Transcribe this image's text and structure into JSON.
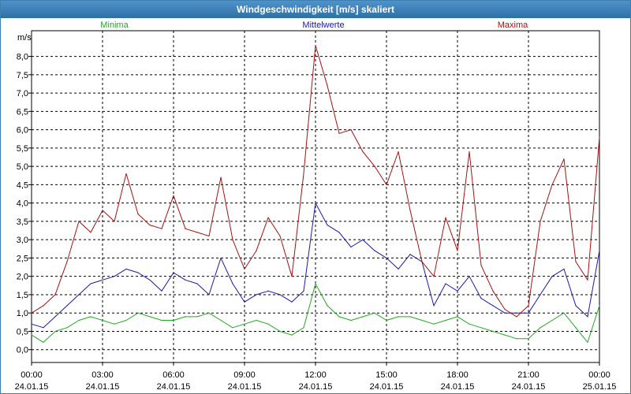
{
  "window": {
    "title": "Windgeschwindigkeit [m/s] skaliert"
  },
  "chart_data": {
    "type": "line",
    "title": "Windgeschwindigkeit [m/s] skaliert",
    "ylabel": "m/s",
    "xlabel": "",
    "ylim": [
      -0.35,
      8.7
    ],
    "xlim": [
      0,
      24
    ],
    "grid": true,
    "legend": "top",
    "y_ticks": [
      "0,0",
      "0,5",
      "1,0",
      "1,5",
      "2,0",
      "2,5",
      "3,0",
      "3,5",
      "4,0",
      "4,5",
      "5,0",
      "5,5",
      "6,0",
      "6,5",
      "7,0",
      "7,5",
      "8,0"
    ],
    "y_tick_values": [
      0,
      0.5,
      1,
      1.5,
      2,
      2.5,
      3,
      3.5,
      4,
      4.5,
      5,
      5.5,
      6,
      6.5,
      7,
      7.5,
      8
    ],
    "x_ticks": [
      {
        "time": "00:00",
        "date": "24.01.15",
        "hour": 0
      },
      {
        "time": "03:00",
        "date": "24.01.15",
        "hour": 3
      },
      {
        "time": "06:00",
        "date": "24.01.15",
        "hour": 6
      },
      {
        "time": "09:00",
        "date": "24.01.15",
        "hour": 9
      },
      {
        "time": "12:00",
        "date": "24.01.15",
        "hour": 12
      },
      {
        "time": "15:00",
        "date": "24.01.15",
        "hour": 15
      },
      {
        "time": "18:00",
        "date": "24.01.15",
        "hour": 18
      },
      {
        "time": "21:00",
        "date": "24.01.15",
        "hour": 21
      },
      {
        "time": "00:00",
        "date": "25.01.15",
        "hour": 24
      }
    ],
    "series": [
      {
        "name": "Minima",
        "color": "#22aa22",
        "legend_pos": "left",
        "x": [
          0,
          0.5,
          1,
          1.5,
          2,
          2.5,
          3,
          3.5,
          4,
          4.5,
          5,
          5.5,
          6,
          6.5,
          7,
          7.5,
          8,
          8.5,
          9,
          9.5,
          10,
          10.5,
          11,
          11.5,
          12,
          12.5,
          13,
          13.5,
          14,
          14.5,
          15,
          15.5,
          16,
          16.5,
          17,
          17.5,
          18,
          18.5,
          19,
          19.5,
          20,
          20.5,
          21,
          21.5,
          22,
          22.5,
          23,
          23.5,
          24
        ],
        "values": [
          0.4,
          0.2,
          0.5,
          0.6,
          0.8,
          0.9,
          0.8,
          0.7,
          0.8,
          1.0,
          0.9,
          0.8,
          0.8,
          0.9,
          0.9,
          1.0,
          0.8,
          0.6,
          0.7,
          0.8,
          0.7,
          0.5,
          0.4,
          0.6,
          1.8,
          1.2,
          0.9,
          0.8,
          0.9,
          1.0,
          0.8,
          0.9,
          0.9,
          0.8,
          0.7,
          0.8,
          0.9,
          0.7,
          0.6,
          0.5,
          0.4,
          0.3,
          0.3,
          0.6,
          0.8,
          1.0,
          0.6,
          0.2,
          1.2
        ]
      },
      {
        "name": "Mittelwerte",
        "color": "#1a1aaa",
        "legend_pos": "center",
        "x": [
          0,
          0.5,
          1,
          1.5,
          2,
          2.5,
          3,
          3.5,
          4,
          4.5,
          5,
          5.5,
          6,
          6.5,
          7,
          7.5,
          8,
          8.5,
          9,
          9.5,
          10,
          10.5,
          11,
          11.5,
          12,
          12.5,
          13,
          13.5,
          14,
          14.5,
          15,
          15.5,
          16,
          16.5,
          17,
          17.5,
          18,
          18.5,
          19,
          19.5,
          20,
          20.5,
          21,
          21.5,
          22,
          22.5,
          23,
          23.5,
          24
        ],
        "values": [
          0.7,
          0.6,
          0.9,
          1.2,
          1.5,
          1.8,
          1.9,
          2.0,
          2.2,
          2.1,
          1.9,
          1.6,
          2.1,
          1.9,
          1.8,
          1.5,
          2.5,
          1.8,
          1.3,
          1.5,
          1.6,
          1.5,
          1.3,
          1.6,
          4.0,
          3.4,
          3.2,
          2.8,
          3.0,
          2.7,
          2.5,
          2.2,
          2.6,
          2.4,
          1.2,
          1.8,
          1.6,
          2.0,
          1.4,
          1.2,
          1.0,
          1.0,
          1.0,
          1.5,
          2.0,
          2.2,
          1.2,
          0.9,
          2.7
        ]
      },
      {
        "name": "Maxima",
        "color": "#aa1111",
        "legend_pos": "right",
        "x": [
          0,
          0.5,
          1,
          1.5,
          2,
          2.5,
          3,
          3.5,
          4,
          4.5,
          5,
          5.5,
          6,
          6.5,
          7,
          7.5,
          8,
          8.5,
          9,
          9.5,
          10,
          10.5,
          11,
          11.5,
          12,
          12.5,
          13,
          13.5,
          14,
          14.5,
          15,
          15.5,
          16,
          16.5,
          17,
          17.5,
          18,
          18.5,
          19,
          19.5,
          20,
          20.5,
          21,
          21.5,
          22,
          22.5,
          23,
          23.5,
          24
        ],
        "values": [
          1.0,
          1.2,
          1.5,
          2.4,
          3.5,
          3.2,
          3.8,
          3.5,
          4.8,
          3.7,
          3.4,
          3.3,
          4.2,
          3.3,
          3.2,
          3.1,
          4.7,
          3.0,
          2.2,
          2.7,
          3.6,
          3.1,
          2.0,
          4.8,
          8.3,
          7.2,
          5.9,
          6.0,
          5.4,
          5.0,
          4.5,
          5.4,
          3.8,
          2.4,
          2.0,
          3.6,
          2.7,
          5.4,
          2.3,
          1.6,
          1.1,
          0.9,
          1.2,
          3.5,
          4.5,
          5.2,
          2.4,
          1.9,
          5.8
        ]
      }
    ]
  }
}
